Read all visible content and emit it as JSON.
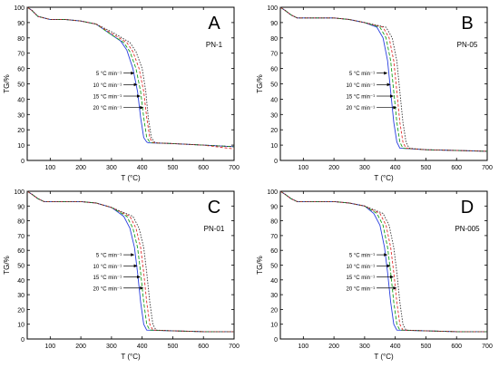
{
  "figure": {
    "panels": [
      "A",
      "B",
      "C",
      "D"
    ]
  },
  "chart_data": [
    {
      "type": "line",
      "panel_letter": "A",
      "sample_label": "PN-1",
      "xlabel": "T (°C)",
      "ylabel": "TG/%",
      "xlim": [
        25,
        700
      ],
      "ylim": [
        0,
        100
      ],
      "xticks": [
        100,
        200,
        300,
        400,
        500,
        600,
        700
      ],
      "yticks": [
        0,
        10,
        20,
        30,
        40,
        50,
        60,
        70,
        80,
        90,
        100
      ],
      "annotations": [
        "5 °C min⁻¹",
        "10 °C min⁻¹",
        "15 °C min⁻¹",
        "20 °C min⁻¹"
      ],
      "series_colors": [
        "#2a3fe0",
        "#1aa01a",
        "#e03030",
        "#333333"
      ],
      "series": [
        {
          "x": [
            25,
            40,
            60,
            80,
            100,
            150,
            200,
            250,
            300,
            330,
            350,
            370,
            385,
            395,
            405,
            415,
            420,
            500,
            600,
            700
          ],
          "y": [
            100,
            98,
            94,
            93,
            92,
            92,
            91,
            89,
            82,
            78,
            72,
            60,
            45,
            28,
            15,
            12,
            11.5,
            11,
            10,
            9
          ]
        },
        {
          "x": [
            25,
            40,
            60,
            80,
            100,
            150,
            200,
            250,
            300,
            340,
            360,
            380,
            395,
            405,
            415,
            425,
            430,
            500,
            600,
            700
          ],
          "y": [
            100,
            98,
            94,
            93,
            92,
            92,
            91,
            89,
            82,
            77,
            71,
            60,
            45,
            28,
            15,
            12,
            11.5,
            11,
            10,
            9
          ]
        },
        {
          "x": [
            25,
            40,
            60,
            80,
            100,
            150,
            200,
            250,
            300,
            350,
            370,
            390,
            405,
            415,
            425,
            432,
            440,
            500,
            600,
            700
          ],
          "y": [
            100,
            98,
            94,
            93,
            92,
            92,
            91,
            89,
            83,
            77,
            71,
            60,
            45,
            28,
            15,
            12,
            11.5,
            11,
            10,
            7.5
          ]
        },
        {
          "x": [
            25,
            40,
            60,
            80,
            100,
            150,
            200,
            250,
            300,
            360,
            380,
            400,
            412,
            420,
            430,
            440,
            445,
            500,
            600,
            700
          ],
          "y": [
            100,
            98,
            94,
            93,
            92,
            92,
            91,
            89,
            84,
            77,
            71,
            60,
            45,
            28,
            15,
            12,
            11.5,
            11,
            10,
            9
          ]
        }
      ]
    },
    {
      "type": "line",
      "panel_letter": "B",
      "sample_label": "PN-05",
      "xlabel": "T (°C)",
      "ylabel": "TG/%",
      "xlim": [
        25,
        700
      ],
      "ylim": [
        0,
        100
      ],
      "xticks": [
        100,
        200,
        300,
        400,
        500,
        600,
        700
      ],
      "yticks": [
        0,
        10,
        20,
        30,
        40,
        50,
        60,
        70,
        80,
        90,
        100
      ],
      "annotations": [
        "5 °C min⁻¹",
        "10 °C min⁻¹",
        "15 °C min⁻¹",
        "20 °C min⁻¹"
      ],
      "series_colors": [
        "#2a3fe0",
        "#1aa01a",
        "#e03030",
        "#333333"
      ],
      "series": [
        {
          "x": [
            25,
            40,
            60,
            80,
            100,
            150,
            200,
            250,
            300,
            340,
            360,
            375,
            385,
            395,
            405,
            415,
            500,
            600,
            700
          ],
          "y": [
            100,
            98,
            95,
            93,
            93,
            93,
            93,
            92,
            90,
            87,
            80,
            65,
            45,
            25,
            12,
            8,
            7,
            6.5,
            6
          ]
        },
        {
          "x": [
            25,
            40,
            60,
            80,
            100,
            150,
            200,
            250,
            300,
            350,
            370,
            385,
            395,
            405,
            415,
            425,
            500,
            600,
            700
          ],
          "y": [
            100,
            98,
            95,
            93,
            93,
            93,
            93,
            92,
            90,
            87,
            80,
            65,
            45,
            25,
            12,
            8,
            7,
            6.5,
            6
          ]
        },
        {
          "x": [
            25,
            40,
            60,
            80,
            100,
            150,
            200,
            250,
            300,
            360,
            380,
            395,
            405,
            415,
            425,
            435,
            500,
            600,
            700
          ],
          "y": [
            100,
            98,
            95,
            93,
            93,
            93,
            93,
            92,
            90,
            87,
            80,
            65,
            45,
            25,
            12,
            8,
            7,
            6.5,
            6
          ]
        },
        {
          "x": [
            25,
            40,
            60,
            80,
            100,
            150,
            200,
            250,
            300,
            370,
            390,
            405,
            415,
            425,
            435,
            445,
            500,
            600,
            700
          ],
          "y": [
            100,
            98,
            95,
            93,
            93,
            93,
            93,
            92,
            90,
            87,
            80,
            65,
            45,
            25,
            12,
            8,
            7,
            6.5,
            6
          ]
        }
      ]
    },
    {
      "type": "line",
      "panel_letter": "C",
      "sample_label": "PN-01",
      "xlabel": "T (°C)",
      "ylabel": "TG/%",
      "xlim": [
        25,
        700
      ],
      "ylim": [
        0,
        100
      ],
      "xticks": [
        100,
        200,
        300,
        400,
        500,
        600,
        700
      ],
      "yticks": [
        0,
        10,
        20,
        30,
        40,
        50,
        60,
        70,
        80,
        90,
        100
      ],
      "annotations": [
        "5 °C min⁻¹",
        "10 °C min⁻¹",
        "15 °C min⁻¹",
        "20 °C min⁻¹"
      ],
      "series_colors": [
        "#2a3fe0",
        "#1aa01a",
        "#e03030",
        "#333333"
      ],
      "series": [
        {
          "x": [
            25,
            40,
            60,
            80,
            100,
            150,
            200,
            250,
            300,
            340,
            360,
            375,
            385,
            395,
            405,
            415,
            500,
            600,
            700
          ],
          "y": [
            100,
            98,
            95,
            93,
            93,
            93,
            93,
            92,
            89,
            83,
            75,
            62,
            45,
            25,
            10,
            6,
            5.5,
            5,
            5
          ]
        },
        {
          "x": [
            25,
            40,
            60,
            80,
            100,
            150,
            200,
            250,
            300,
            350,
            370,
            385,
            395,
            405,
            415,
            425,
            500,
            600,
            700
          ],
          "y": [
            100,
            98,
            95,
            93,
            93,
            93,
            93,
            92,
            89,
            83,
            75,
            62,
            45,
            25,
            10,
            6,
            5.5,
            5,
            5
          ]
        },
        {
          "x": [
            25,
            40,
            60,
            80,
            100,
            150,
            200,
            250,
            300,
            360,
            380,
            395,
            405,
            415,
            425,
            435,
            500,
            600,
            700
          ],
          "y": [
            100,
            98,
            95,
            93,
            93,
            93,
            93,
            92,
            89,
            83,
            75,
            62,
            45,
            25,
            10,
            6,
            5.5,
            5,
            5
          ]
        },
        {
          "x": [
            25,
            40,
            60,
            80,
            100,
            150,
            200,
            250,
            300,
            370,
            390,
            405,
            415,
            425,
            435,
            445,
            500,
            600,
            700
          ],
          "y": [
            100,
            98,
            95,
            93,
            93,
            93,
            93,
            92,
            89,
            83,
            75,
            62,
            45,
            25,
            10,
            6,
            5.5,
            5,
            5
          ]
        }
      ]
    },
    {
      "type": "line",
      "panel_letter": "D",
      "sample_label": "PN-005",
      "xlabel": "T (°C)",
      "ylabel": "TG/%",
      "xlim": [
        25,
        700
      ],
      "ylim": [
        0,
        100
      ],
      "xticks": [
        100,
        200,
        300,
        400,
        500,
        600,
        700
      ],
      "yticks": [
        0,
        10,
        20,
        30,
        40,
        50,
        60,
        70,
        80,
        90,
        100
      ],
      "annotations": [
        "5 °C min⁻¹",
        "10 °C min⁻¹",
        "15 °C min⁻¹",
        "20 °C min⁻¹"
      ],
      "series_colors": [
        "#2a3fe0",
        "#1aa01a",
        "#e03030",
        "#333333"
      ],
      "series": [
        {
          "x": [
            25,
            40,
            60,
            80,
            100,
            150,
            200,
            250,
            300,
            330,
            350,
            365,
            375,
            385,
            395,
            405,
            500,
            600,
            700
          ],
          "y": [
            100,
            98,
            95,
            93,
            93,
            93,
            93,
            92,
            90,
            85,
            77,
            62,
            45,
            25,
            10,
            6,
            5.5,
            5,
            5
          ]
        },
        {
          "x": [
            25,
            40,
            60,
            80,
            100,
            150,
            200,
            250,
            300,
            340,
            360,
            375,
            385,
            395,
            405,
            415,
            500,
            600,
            700
          ],
          "y": [
            100,
            98,
            95,
            93,
            93,
            93,
            93,
            92,
            90,
            85,
            77,
            62,
            45,
            25,
            10,
            6,
            5.5,
            5,
            5
          ]
        },
        {
          "x": [
            25,
            40,
            60,
            80,
            100,
            150,
            200,
            250,
            300,
            350,
            370,
            385,
            395,
            405,
            415,
            425,
            500,
            600,
            700
          ],
          "y": [
            100,
            98,
            95,
            93,
            93,
            93,
            93,
            92,
            90,
            85,
            77,
            62,
            45,
            25,
            10,
            6,
            5.5,
            5,
            5
          ]
        },
        {
          "x": [
            25,
            40,
            60,
            80,
            100,
            150,
            200,
            250,
            300,
            360,
            380,
            395,
            405,
            415,
            425,
            435,
            500,
            600,
            700
          ],
          "y": [
            100,
            98,
            95,
            93,
            93,
            93,
            93,
            92,
            90,
            85,
            77,
            62,
            45,
            25,
            10,
            6,
            5.5,
            5,
            5
          ]
        }
      ]
    }
  ]
}
